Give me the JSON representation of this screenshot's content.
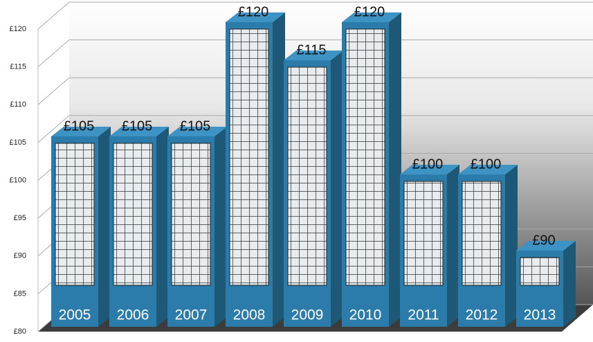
{
  "chart_data": {
    "type": "bar",
    "categories": [
      "2005",
      "2006",
      "2007",
      "2008",
      "2009",
      "2010",
      "2011",
      "2012",
      "2013"
    ],
    "values": [
      105,
      105,
      105,
      120,
      115,
      120,
      100,
      100,
      90
    ],
    "value_labels": [
      "£105",
      "£105",
      "£105",
      "£120",
      "£115",
      "£120",
      "£100",
      "£100",
      "£90"
    ],
    "color": "#2b7cab",
    "ylim": [
      80,
      120
    ],
    "yticks": [
      {
        "value": 80,
        "label": "£80"
      },
      {
        "value": 85,
        "label": "£85"
      },
      {
        "value": 90,
        "label": "£90"
      },
      {
        "value": 95,
        "label": "£95"
      },
      {
        "value": 100,
        "label": "£100"
      },
      {
        "value": 105,
        "label": "£105"
      },
      {
        "value": 110,
        "label": "£110"
      },
      {
        "value": 115,
        "label": "£115"
      },
      {
        "value": 120,
        "label": "£120"
      }
    ],
    "grid": true
  }
}
